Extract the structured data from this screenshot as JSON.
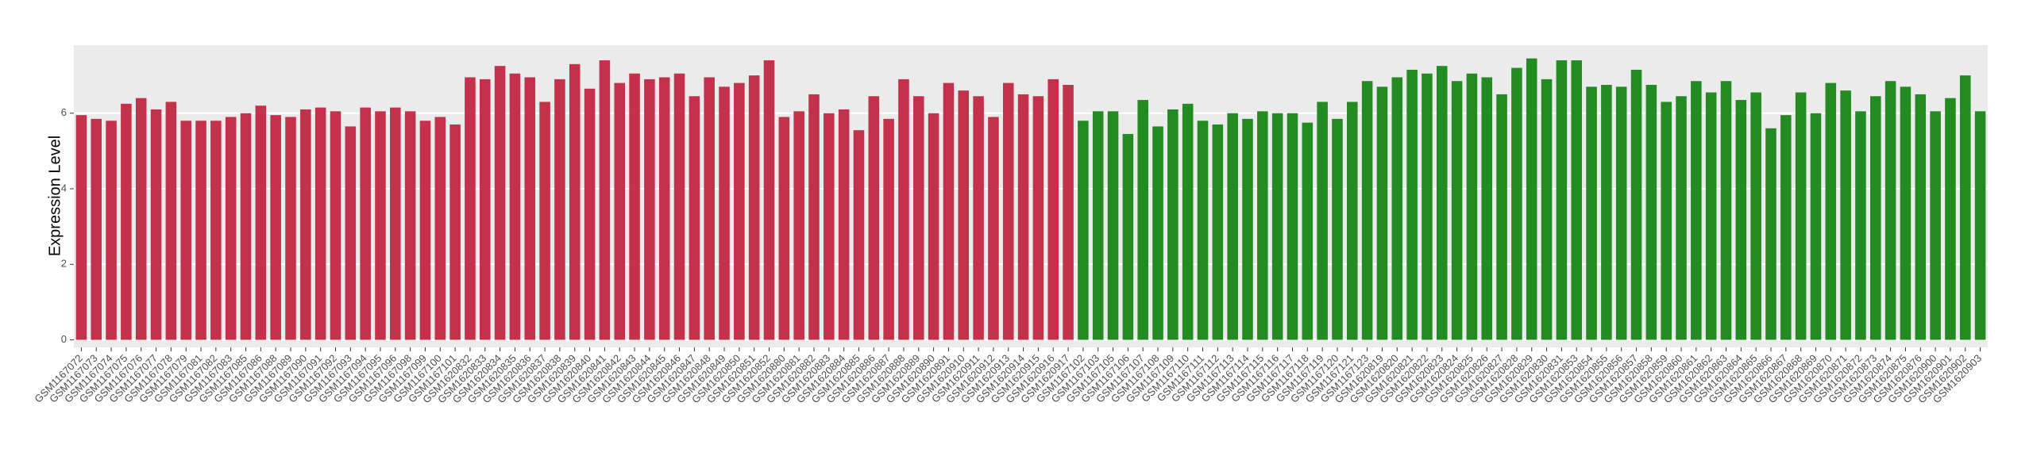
{
  "chart_data": {
    "type": "bar",
    "y_label": "Expression Level",
    "categories": [
      "GSM1167072",
      "GSM1167073",
      "GSM1167074",
      "GSM1167075",
      "GSM1167076",
      "GSM1167077",
      "GSM1167078",
      "GSM1167079",
      "GSM1167081",
      "GSM1167082",
      "GSM1167083",
      "GSM1167085",
      "GSM1167086",
      "GSM1167088",
      "GSM1167089",
      "GSM1167090",
      "GSM1167091",
      "GSM1167092",
      "GSM1167093",
      "GSM1167094",
      "GSM1167095",
      "GSM1167096",
      "GSM1167098",
      "GSM1167099",
      "GSM1167100",
      "GSM1167101",
      "GSM1620832",
      "GSM1620833",
      "GSM1620834",
      "GSM1620835",
      "GSM1620836",
      "GSM1620837",
      "GSM1620838",
      "GSM1620839",
      "GSM1620840",
      "GSM1620841",
      "GSM1620842",
      "GSM1620843",
      "GSM1620844",
      "GSM1620845",
      "GSM1620846",
      "GSM1620847",
      "GSM1620848",
      "GSM1620849",
      "GSM1620850",
      "GSM1620851",
      "GSM1620852",
      "GSM1620880",
      "GSM1620881",
      "GSM1620882",
      "GSM1620883",
      "GSM1620884",
      "GSM1620885",
      "GSM1620886",
      "GSM1620887",
      "GSM1620888",
      "GSM1620889",
      "GSM1620890",
      "GSM1620891",
      "GSM1620910",
      "GSM1620911",
      "GSM1620912",
      "GSM1620913",
      "GSM1620914",
      "GSM1620915",
      "GSM1620916",
      "GSM1620917",
      "GSM1167102",
      "GSM1167103",
      "GSM1167105",
      "GSM1167106",
      "GSM1167107",
      "GSM1167108",
      "GSM1167109",
      "GSM1167110",
      "GSM1167111",
      "GSM1167112",
      "GSM1167113",
      "GSM1167114",
      "GSM1167115",
      "GSM1167116",
      "GSM1167117",
      "GSM1167118",
      "GSM1167119",
      "GSM1167120",
      "GSM1167121",
      "GSM1167123",
      "GSM1620819",
      "GSM1620820",
      "GSM1620821",
      "GSM1620822",
      "GSM1620823",
      "GSM1620824",
      "GSM1620825",
      "GSM1620826",
      "GSM1620827",
      "GSM1620828",
      "GSM1620829",
      "GSM1620830",
      "GSM1620831",
      "GSM1620853",
      "GSM1620854",
      "GSM1620855",
      "GSM1620856",
      "GSM1620857",
      "GSM1620858",
      "GSM1620859",
      "GSM1620860",
      "GSM1620861",
      "GSM1620862",
      "GSM1620863",
      "GSM1620864",
      "GSM1620865",
      "GSM1620866",
      "GSM1620867",
      "GSM1620868",
      "GSM1620869",
      "GSM1620870",
      "GSM1620871",
      "GSM1620872",
      "GSM1620873",
      "GSM1620874",
      "GSM1620875",
      "GSM1620876",
      "GSM1620900",
      "GSM1620901",
      "GSM1620902",
      "GSM1620903"
    ],
    "series": [
      {
        "color": "#c4314b",
        "values": [
          5.95,
          5.85,
          5.8,
          6.25,
          6.4,
          6.1,
          6.3,
          5.8,
          5.8,
          5.8,
          5.9,
          6.0,
          6.2,
          5.95,
          5.9,
          6.1,
          6.15,
          6.05,
          5.65,
          6.15,
          6.05,
          6.15,
          6.05,
          5.8,
          5.9,
          5.7,
          6.95,
          6.9,
          7.25,
          7.05,
          6.95,
          6.3,
          6.9,
          7.3,
          6.65,
          7.4,
          6.8,
          7.05,
          6.9,
          6.95,
          7.05,
          6.45,
          6.95,
          6.7,
          6.8,
          7.0,
          7.4,
          5.9,
          6.05,
          6.5,
          6.0,
          6.1,
          5.55,
          6.45,
          5.85,
          6.9,
          6.45,
          6.0,
          6.8,
          6.6,
          6.45,
          5.9,
          6.8,
          6.5,
          6.45,
          6.9,
          6.75,
          null,
          null,
          null,
          null,
          null,
          null,
          null,
          null,
          null,
          null,
          null,
          null,
          null,
          null,
          null,
          null,
          null,
          null,
          null,
          null,
          null,
          null,
          null,
          null,
          null,
          null,
          null,
          null,
          null,
          null,
          null,
          null,
          null,
          null,
          null,
          null,
          null,
          null,
          null,
          null,
          null,
          null,
          null,
          null,
          null,
          null,
          null,
          null,
          null,
          null,
          null,
          null,
          null,
          null,
          null,
          null,
          null,
          null,
          null,
          null,
          null
        ]
      },
      {
        "color": "#228b22",
        "values": [
          null,
          null,
          null,
          null,
          null,
          null,
          null,
          null,
          null,
          null,
          null,
          null,
          null,
          null,
          null,
          null,
          null,
          null,
          null,
          null,
          null,
          null,
          null,
          null,
          null,
          null,
          null,
          null,
          null,
          null,
          null,
          null,
          null,
          null,
          null,
          null,
          null,
          null,
          null,
          null,
          null,
          null,
          null,
          null,
          null,
          null,
          null,
          null,
          null,
          null,
          null,
          null,
          null,
          null,
          null,
          null,
          null,
          null,
          null,
          null,
          null,
          null,
          null,
          null,
          null,
          null,
          null,
          5.8,
          6.05,
          6.05,
          5.45,
          6.35,
          5.65,
          6.1,
          6.25,
          5.8,
          5.7,
          6.0,
          5.85,
          6.05,
          6.0,
          6.0,
          5.75,
          6.3,
          5.85,
          6.3,
          6.85,
          6.7,
          6.95,
          7.15,
          7.05,
          7.25,
          6.85,
          7.05,
          6.95,
          6.5,
          7.2,
          7.45,
          6.9,
          7.4,
          7.4,
          6.7,
          6.75,
          6.7,
          7.15,
          6.75,
          6.3,
          6.45,
          6.85,
          6.55,
          6.85,
          6.35,
          6.55,
          5.6,
          5.95,
          6.55,
          6.0,
          6.8,
          6.6,
          6.05,
          6.45,
          6.85,
          6.7,
          6.5,
          6.05,
          6.4,
          7.0,
          6.05
        ]
      }
    ],
    "ylim": [
      -0.2,
      7.8
    ],
    "yticks": [
      0,
      2,
      4,
      6
    ],
    "grid": true
  }
}
